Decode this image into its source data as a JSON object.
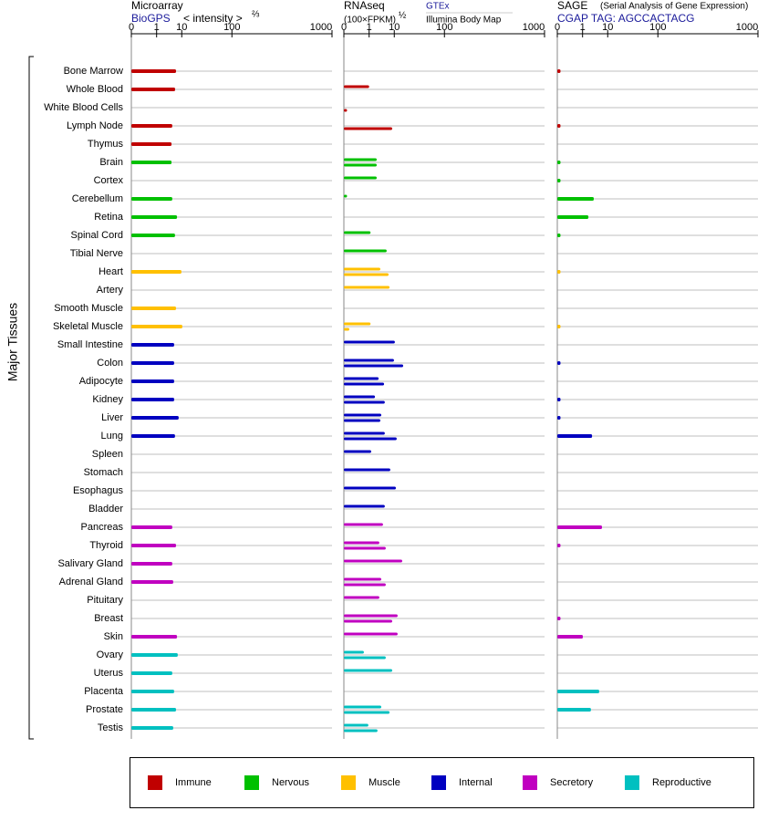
{
  "chart_data": {
    "type": "bar",
    "y_label": "Major Tissues",
    "categories": [
      "Bone Marrow",
      "Whole Blood",
      "White Blood Cells",
      "Lymph Node",
      "Thymus",
      "Brain",
      "Cortex",
      "Cerebellum",
      "Retina",
      "Spinal Cord",
      "Tibial Nerve",
      "Heart",
      "Artery",
      "Smooth Muscle",
      "Skeletal Muscle",
      "Small Intestine",
      "Colon",
      "Adipocyte",
      "Kidney",
      "Liver",
      "Lung",
      "Spleen",
      "Stomach",
      "Esophagus",
      "Bladder",
      "Pancreas",
      "Thyroid",
      "Salivary Gland",
      "Adrenal Gland",
      "Pituitary",
      "Breast",
      "Skin",
      "Ovary",
      "Uterus",
      "Placenta",
      "Prostate",
      "Testis"
    ],
    "colors": [
      "#c00000",
      "#c00000",
      "#c00000",
      "#c00000",
      "#c00000",
      "#00c000",
      "#00c000",
      "#00c000",
      "#00c000",
      "#00c000",
      "#00c000",
      "#ffc000",
      "#ffc000",
      "#ffc000",
      "#ffc000",
      "#0000c0",
      "#0000c0",
      "#0000c0",
      "#0000c0",
      "#0000c0",
      "#0000c0",
      "#0000c0",
      "#0000c0",
      "#0000c0",
      "#0000c0",
      "#c000c0",
      "#c000c0",
      "#c000c0",
      "#c000c0",
      "#c000c0",
      "#c000c0",
      "#c000c0",
      "#00c0c0",
      "#00c0c0",
      "#00c0c0",
      "#00c0c0",
      "#00c0c0"
    ],
    "legend": [
      {
        "name": "Immune",
        "color": "#c00000"
      },
      {
        "name": "Nervous",
        "color": "#00c000"
      },
      {
        "name": "Muscle",
        "color": "#ffc000"
      },
      {
        "name": "Internal",
        "color": "#0000c0"
      },
      {
        "name": "Secretory",
        "color": "#c000c0"
      },
      {
        "name": "Reproductive",
        "color": "#00c0c0"
      }
    ],
    "panels": [
      {
        "title": "Microarray",
        "source": "BioGPS",
        "unit": "< intensity >",
        "unit_power": "⅔",
        "xlim": [
          0,
          1000
        ],
        "xticks": [
          0,
          1,
          10,
          100,
          1000
        ],
        "series": [
          {
            "values": [
              6.7,
              6.25,
              null,
              5.0,
              4.7,
              4.7,
              null,
              5.0,
              7.2,
              6.2,
              null,
              9.8,
              null,
              6.7,
              10.4,
              5.8,
              5.8,
              5.8,
              5.8,
              8.1,
              6.2,
              null,
              null,
              null,
              null,
              5.0,
              6.7,
              5.0,
              5.4,
              null,
              null,
              7.2,
              7.6,
              5.0,
              5.8,
              6.7,
              5.4
            ]
          }
        ]
      },
      {
        "title": "RNAseq",
        "unit": "(100×FPKM)",
        "unit_power": "½",
        "xlim": [
          0,
          1000
        ],
        "xticks": [
          0,
          1,
          10,
          100,
          1000
        ],
        "series": [
          {
            "name": "GTEx",
            "values": [
              null,
              1.0,
              null,
              null,
              null,
              2.4,
              2.4,
              0.001,
              null,
              1.2,
              5.8,
              3.4,
              7.2,
              null,
              1.2,
              10.4,
              9.8,
              2.9,
              2.0,
              3.7,
              5.0,
              1.3,
              7.6,
              11.1,
              5.0,
              4.3,
              3.1,
              16.3,
              3.7,
              3.1,
              12.4,
              12.4,
              0.46,
              8.7,
              null,
              3.7,
              0.9
            ]
          },
          {
            "name": "Illumina Body Map",
            "values": [
              null,
              null,
              0.001,
              8.7,
              null,
              2.4,
              null,
              null,
              null,
              null,
              null,
              6.7,
              null,
              null,
              0.006,
              null,
              17.2,
              4.7,
              5.0,
              3.4,
              11.7,
              null,
              null,
              null,
              null,
              null,
              5.4,
              null,
              5.4,
              null,
              8.7,
              null,
              5.4,
              null,
              null,
              7.2,
              2.6
            ]
          }
        ]
      },
      {
        "title": "SAGE",
        "note": "(Serial Analysis of Gene Expression)",
        "source": "CGAP TAG: AGCCACTACG",
        "xlim": [
          0,
          1000
        ],
        "xticks": [
          0,
          1,
          10,
          100,
          1000
        ],
        "series": [
          {
            "values": [
              0.001,
              null,
              null,
              0.001,
              null,
              0.001,
              0.001,
              3.4,
              2.0,
              0.001,
              null,
              0.001,
              null,
              null,
              0.001,
              null,
              0.001,
              null,
              0.001,
              0.001,
              2.9,
              null,
              null,
              null,
              null,
              6.7,
              0.001,
              null,
              null,
              null,
              0.001,
              1.04,
              null,
              null,
              5.4,
              2.6,
              null
            ]
          }
        ]
      }
    ]
  }
}
